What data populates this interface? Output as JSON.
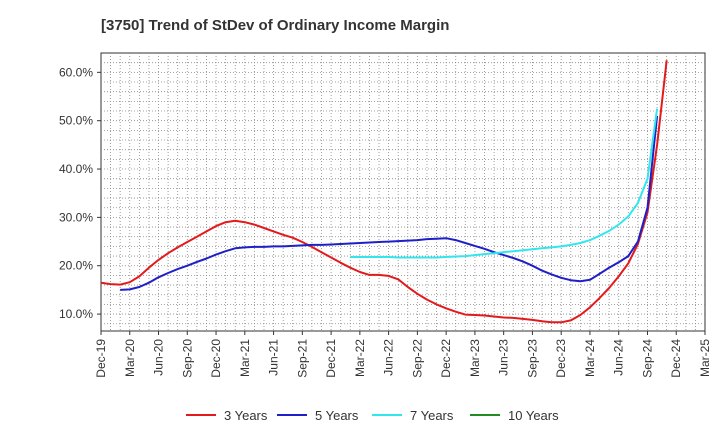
{
  "chart_data": {
    "type": "line",
    "title": "[3750]  Trend of StDev of Ordinary Income Margin",
    "xlabel": "",
    "ylabel": "",
    "x_ticks": [
      "Dec-19",
      "Mar-20",
      "Jun-20",
      "Sep-20",
      "Dec-20",
      "Mar-21",
      "Jun-21",
      "Sep-21",
      "Dec-21",
      "Mar-22",
      "Jun-22",
      "Sep-22",
      "Dec-22",
      "Mar-23",
      "Jun-23",
      "Sep-23",
      "Dec-23",
      "Mar-24",
      "Jun-24",
      "Sep-24",
      "Dec-24",
      "Mar-25"
    ],
    "y_ticks": [
      "10.0%",
      "20.0%",
      "30.0%",
      "40.0%",
      "50.0%",
      "60.0%"
    ],
    "y_tick_values": [
      10,
      20,
      30,
      40,
      50,
      60
    ],
    "ylim": [
      6.5,
      64
    ],
    "grid": true,
    "legend_position": "bottom",
    "colors": {
      "3y": "#e31a1c",
      "5y": "#1f1fc8",
      "7y": "#33e6ee",
      "10y": "#228b22"
    },
    "series": [
      {
        "name": "3 Years",
        "color": "#e31a1c",
        "points": [
          [
            0,
            16.5
          ],
          [
            1,
            16.2
          ],
          [
            2,
            16.1
          ],
          [
            3,
            16.6
          ],
          [
            4,
            17.8
          ],
          [
            5,
            19.6
          ],
          [
            6,
            21.2
          ],
          [
            7,
            22.6
          ],
          [
            8,
            23.8
          ],
          [
            9,
            24.9
          ],
          [
            10,
            26.0
          ],
          [
            11,
            27.1
          ],
          [
            12,
            28.2
          ],
          [
            13,
            29.0
          ],
          [
            14,
            29.3
          ],
          [
            15,
            29.0
          ],
          [
            16,
            28.5
          ],
          [
            17,
            27.8
          ],
          [
            18,
            27.1
          ],
          [
            19,
            26.4
          ],
          [
            20,
            25.8
          ],
          [
            21,
            24.9
          ],
          [
            22,
            23.9
          ],
          [
            23,
            22.8
          ],
          [
            24,
            21.7
          ],
          [
            25,
            20.6
          ],
          [
            26,
            19.6
          ],
          [
            27,
            18.7
          ],
          [
            28,
            18.1
          ],
          [
            29,
            18.1
          ],
          [
            30,
            17.9
          ],
          [
            31,
            17.2
          ],
          [
            32,
            15.6
          ],
          [
            33,
            14.2
          ],
          [
            34,
            13.0
          ],
          [
            35,
            12.0
          ],
          [
            36,
            11.2
          ],
          [
            37,
            10.5
          ],
          [
            38,
            9.9
          ],
          [
            39,
            9.8
          ],
          [
            40,
            9.7
          ],
          [
            41,
            9.5
          ],
          [
            42,
            9.3
          ],
          [
            43,
            9.2
          ],
          [
            44,
            9.0
          ],
          [
            45,
            8.8
          ],
          [
            46,
            8.5
          ],
          [
            47,
            8.3
          ],
          [
            48,
            8.3
          ],
          [
            49,
            8.7
          ],
          [
            50,
            9.8
          ],
          [
            51,
            11.4
          ],
          [
            52,
            13.3
          ],
          [
            53,
            15.4
          ],
          [
            54,
            17.8
          ],
          [
            55,
            20.5
          ],
          [
            56,
            24.5
          ],
          [
            57,
            31.0
          ],
          [
            58,
            45.0
          ],
          [
            59,
            62.5
          ]
        ]
      },
      {
        "name": "5 Years",
        "color": "#1f1fc8",
        "points": [
          [
            2,
            15.0
          ],
          [
            3,
            15.1
          ],
          [
            4,
            15.6
          ],
          [
            5,
            16.5
          ],
          [
            6,
            17.6
          ],
          [
            7,
            18.5
          ],
          [
            8,
            19.3
          ],
          [
            9,
            20.0
          ],
          [
            10,
            20.8
          ],
          [
            11,
            21.5
          ],
          [
            12,
            22.3
          ],
          [
            13,
            23.0
          ],
          [
            14,
            23.6
          ],
          [
            15,
            23.8
          ],
          [
            16,
            23.9
          ],
          [
            17,
            23.9
          ],
          [
            18,
            24.0
          ],
          [
            19,
            24.0
          ],
          [
            20,
            24.1
          ],
          [
            21,
            24.2
          ],
          [
            22,
            24.3
          ],
          [
            23,
            24.3
          ],
          [
            24,
            24.4
          ],
          [
            25,
            24.5
          ],
          [
            26,
            24.6
          ],
          [
            27,
            24.7
          ],
          [
            28,
            24.8
          ],
          [
            29,
            24.9
          ],
          [
            30,
            25.0
          ],
          [
            31,
            25.1
          ],
          [
            32,
            25.2
          ],
          [
            33,
            25.3
          ],
          [
            34,
            25.5
          ],
          [
            35,
            25.6
          ],
          [
            36,
            25.7
          ],
          [
            37,
            25.3
          ],
          [
            38,
            24.7
          ],
          [
            39,
            24.1
          ],
          [
            40,
            23.5
          ],
          [
            41,
            22.8
          ],
          [
            42,
            22.2
          ],
          [
            43,
            21.6
          ],
          [
            44,
            20.9
          ],
          [
            45,
            20.0
          ],
          [
            46,
            19.0
          ],
          [
            47,
            18.2
          ],
          [
            48,
            17.5
          ],
          [
            49,
            17.0
          ],
          [
            50,
            16.8
          ],
          [
            51,
            17.1
          ],
          [
            52,
            18.3
          ],
          [
            53,
            19.6
          ],
          [
            54,
            20.7
          ],
          [
            55,
            22.0
          ],
          [
            56,
            25.0
          ],
          [
            57,
            32.0
          ],
          [
            58,
            51.0
          ]
        ]
      },
      {
        "name": "7 Years",
        "color": "#33e6ee",
        "points": [
          [
            26,
            21.8
          ],
          [
            27,
            21.8
          ],
          [
            28,
            21.8
          ],
          [
            29,
            21.8
          ],
          [
            30,
            21.8
          ],
          [
            31,
            21.7
          ],
          [
            32,
            21.7
          ],
          [
            33,
            21.7
          ],
          [
            34,
            21.7
          ],
          [
            35,
            21.7
          ],
          [
            36,
            21.8
          ],
          [
            37,
            21.9
          ],
          [
            38,
            22.0
          ],
          [
            39,
            22.2
          ],
          [
            40,
            22.4
          ],
          [
            41,
            22.6
          ],
          [
            42,
            22.8
          ],
          [
            43,
            23.0
          ],
          [
            44,
            23.2
          ],
          [
            45,
            23.4
          ],
          [
            46,
            23.6
          ],
          [
            47,
            23.8
          ],
          [
            48,
            24.0
          ],
          [
            49,
            24.3
          ],
          [
            50,
            24.7
          ],
          [
            51,
            25.3
          ],
          [
            52,
            26.2
          ],
          [
            53,
            27.2
          ],
          [
            54,
            28.5
          ],
          [
            55,
            30.2
          ],
          [
            56,
            33.0
          ],
          [
            57,
            38.0
          ],
          [
            58,
            52.5
          ]
        ]
      },
      {
        "name": "10 Years",
        "color": "#228b22",
        "points": []
      }
    ]
  }
}
